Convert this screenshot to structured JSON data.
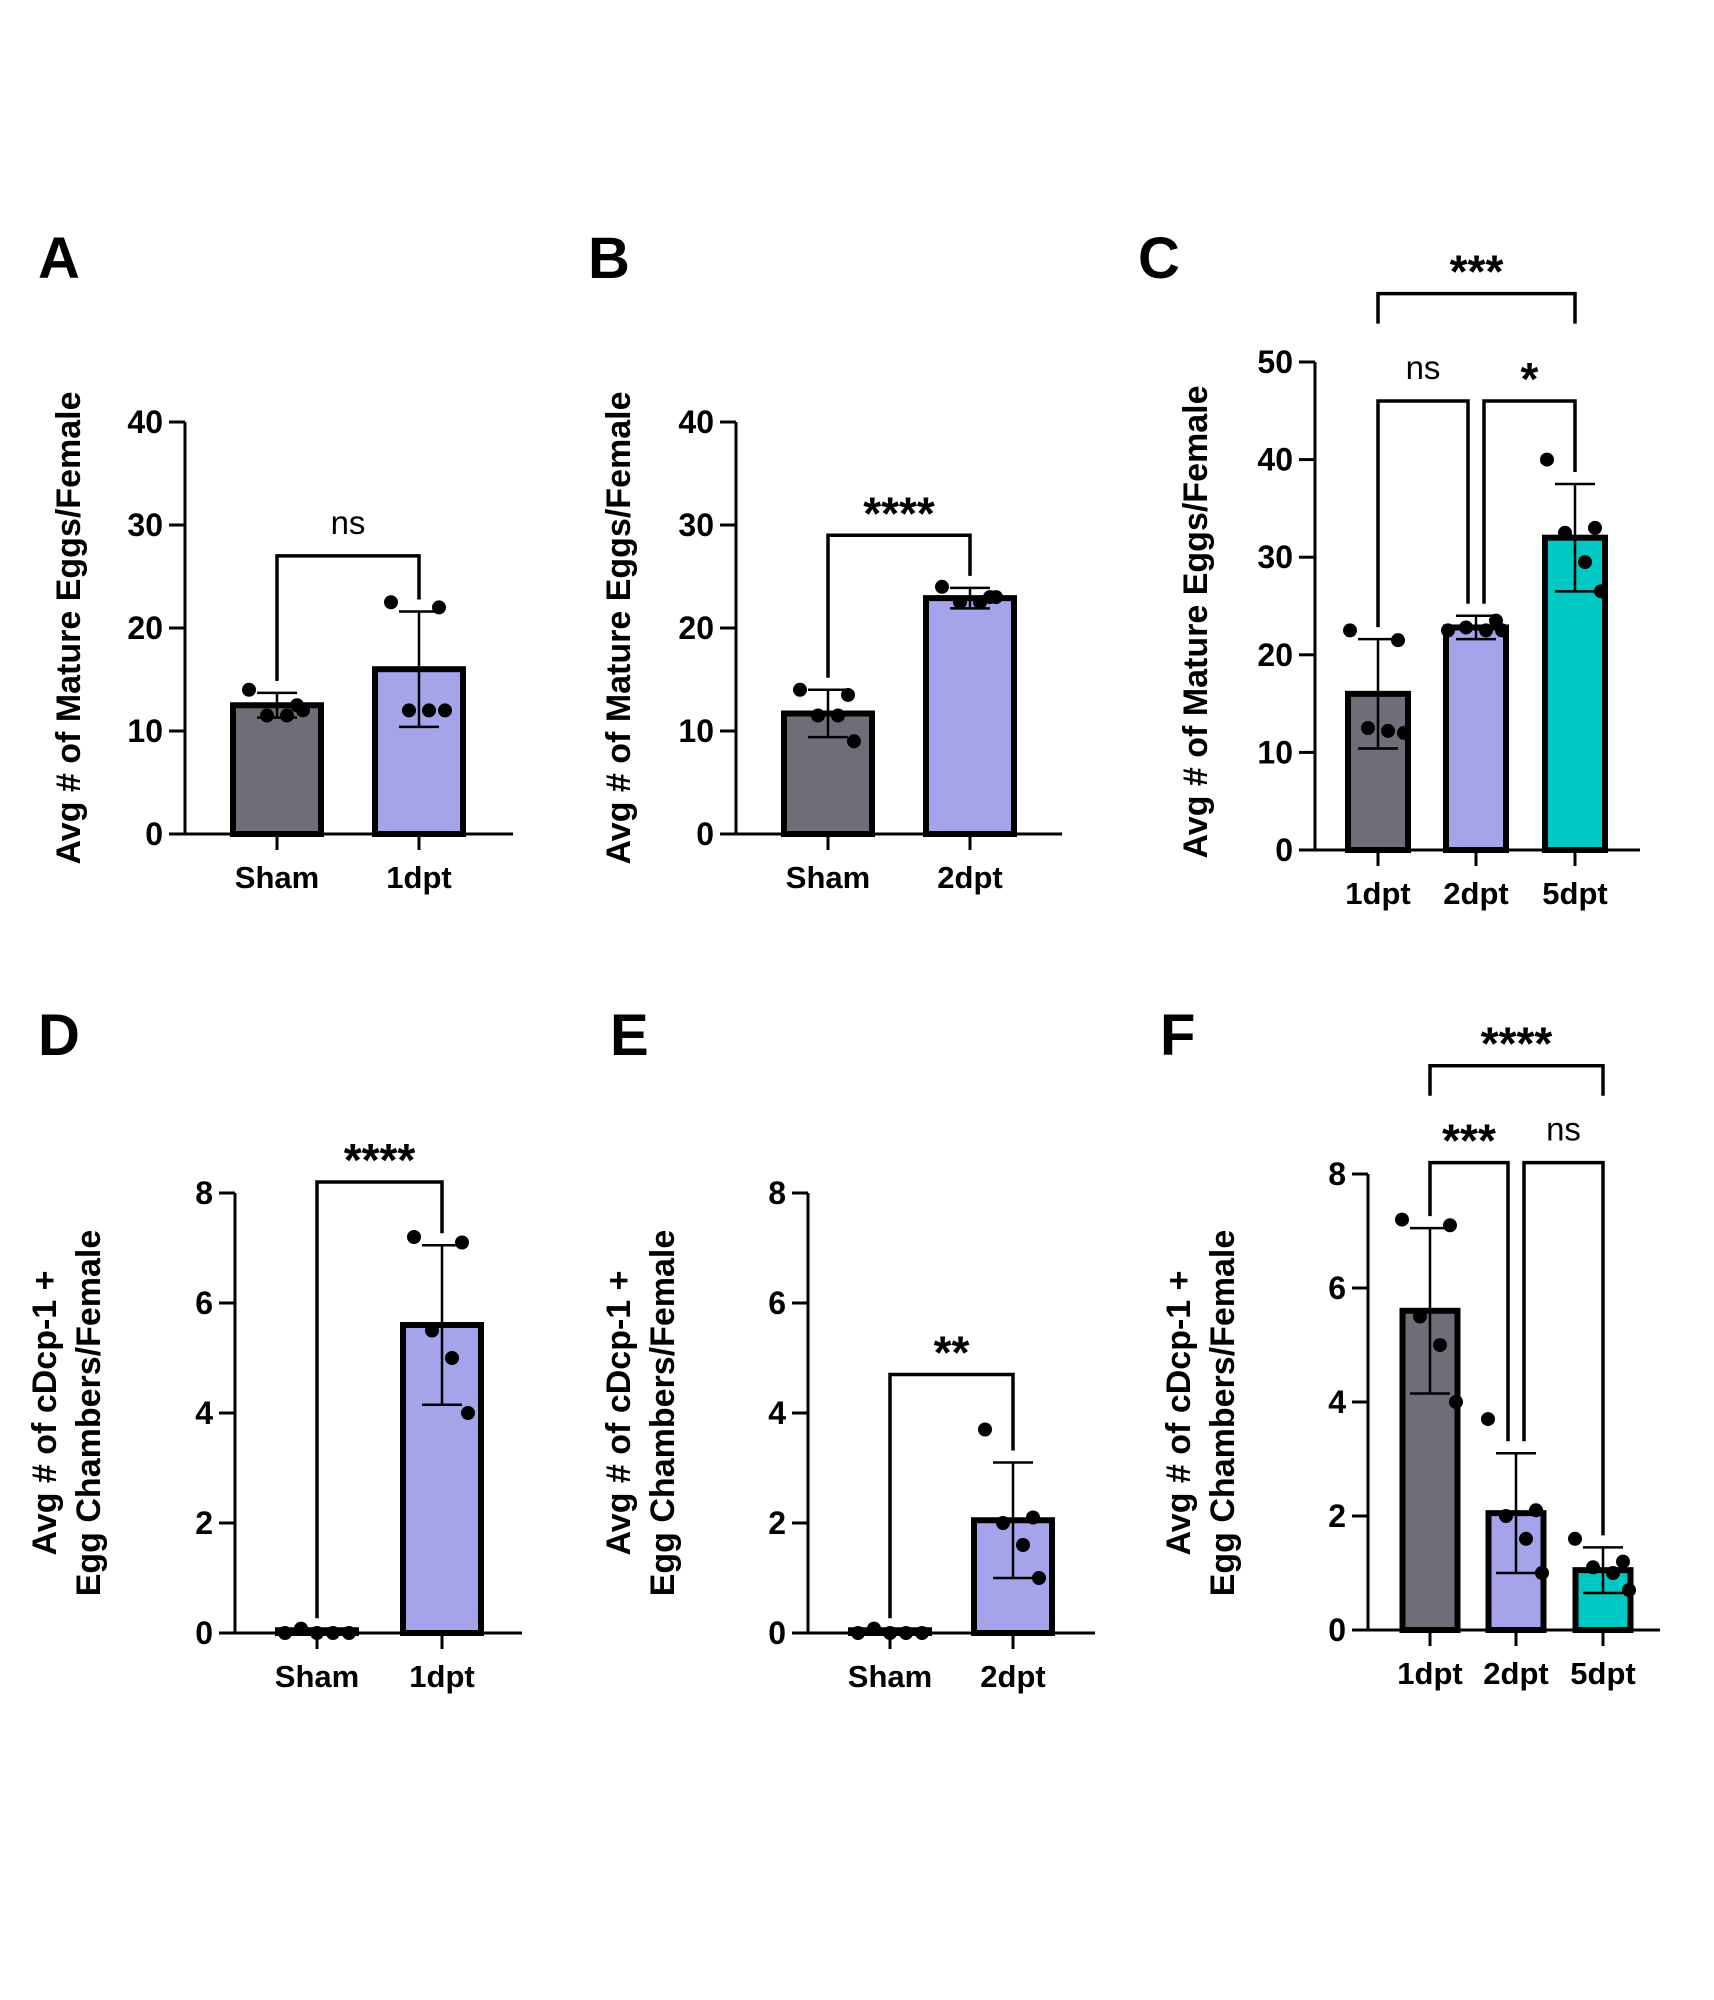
{
  "chart_data": [
    {
      "panel": "A",
      "type": "bar",
      "ylabel_lines": [
        "Avg # of Mature Eggs/Female"
      ],
      "ylim": [
        0,
        40
      ],
      "yticks": [
        0,
        10,
        20,
        30,
        40
      ],
      "categories": [
        "Sham",
        "1dpt"
      ],
      "values": [
        12.5,
        16
      ],
      "error": [
        1.2,
        5.6
      ],
      "points": [
        [
          14,
          12.5,
          11.5,
          11.5,
          12
        ],
        [
          22.5,
          22,
          12,
          12,
          12
        ]
      ],
      "colors": [
        "#6e6e78",
        "#a5a3ea"
      ],
      "significance": [
        {
          "from": 0,
          "to": 1,
          "label": "ns",
          "y": 27
        }
      ]
    },
    {
      "panel": "B",
      "type": "bar",
      "ylabel_lines": [
        "Avg # of Mature Eggs/Female"
      ],
      "ylim": [
        0,
        40
      ],
      "yticks": [
        0,
        10,
        20,
        30,
        40
      ],
      "categories": [
        "Sham",
        "2dpt"
      ],
      "values": [
        11.7,
        22.9
      ],
      "error": [
        2.3,
        1.0
      ],
      "points": [
        [
          14,
          13.5,
          11.5,
          11.5,
          9
        ],
        [
          24,
          23,
          22.5,
          22.5,
          23
        ]
      ],
      "colors": [
        "#6e6e78",
        "#a5a3ea"
      ],
      "significance": [
        {
          "from": 0,
          "to": 1,
          "label": "****",
          "y": 29
        }
      ]
    },
    {
      "panel": "C",
      "type": "bar",
      "ylabel_lines": [
        "Avg # of Mature Eggs/Female"
      ],
      "ylim": [
        0,
        50
      ],
      "yticks": [
        0,
        10,
        20,
        30,
        40,
        50
      ],
      "categories": [
        "1dpt",
        "2dpt",
        "5dpt"
      ],
      "values": [
        16,
        22.8,
        32
      ],
      "error": [
        5.6,
        1.2,
        5.5
      ],
      "points": [
        [
          22.5,
          21.5,
          12.5,
          12.2,
          12
        ],
        [
          22.5,
          23.5,
          22.8,
          22.5,
          22.5
        ],
        [
          40,
          33,
          32.5,
          29.5,
          26.5
        ]
      ],
      "colors": [
        "#6e6e78",
        "#a5a3ea",
        "#00c8c2"
      ],
      "significance": [
        {
          "from": 0,
          "to": 1,
          "label": "ns",
          "y": 46
        },
        {
          "from": 1,
          "to": 2,
          "label": "*",
          "y": 46
        },
        {
          "from": 0,
          "to": 2,
          "label": "***",
          "y": 57
        }
      ]
    },
    {
      "panel": "D",
      "type": "bar",
      "ylabel_lines": [
        "Avg # of cDcp-1 +",
        "Egg Chambers/Female"
      ],
      "ylim": [
        0,
        8
      ],
      "yticks": [
        0,
        2,
        4,
        6,
        8
      ],
      "categories": [
        "Sham",
        "1dpt"
      ],
      "values": [
        0.05,
        5.6
      ],
      "error": [
        0,
        1.45
      ],
      "points": [
        [
          0,
          0.08,
          0,
          0,
          0
        ],
        [
          7.2,
          7.1,
          5.5,
          5.0,
          4.0
        ]
      ],
      "colors": [
        "#6e6e78",
        "#a5a3ea"
      ],
      "significance": [
        {
          "from": 0,
          "to": 1,
          "label": "****",
          "y": 8.2
        }
      ]
    },
    {
      "panel": "E",
      "type": "bar",
      "ylabel_lines": [
        "Avg # of cDcp-1 +",
        "Egg Chambers/Female"
      ],
      "ylim": [
        0,
        8
      ],
      "yticks": [
        0,
        2,
        4,
        6,
        8
      ],
      "categories": [
        "Sham",
        "2dpt"
      ],
      "values": [
        0.05,
        2.05
      ],
      "error": [
        0,
        1.05
      ],
      "points": [
        [
          0,
          0.08,
          0,
          0,
          0
        ],
        [
          3.7,
          2.1,
          2.0,
          1.6,
          1.0
        ]
      ],
      "colors": [
        "#6e6e78",
        "#a5a3ea"
      ],
      "significance": [
        {
          "from": 0,
          "to": 1,
          "label": "**",
          "y": 4.7
        }
      ]
    },
    {
      "panel": "F",
      "type": "bar",
      "ylabel_lines": [
        "Avg # of cDcp-1 +",
        "Egg Chambers/Female"
      ],
      "ylim": [
        0,
        8
      ],
      "yticks": [
        0,
        2,
        4,
        6,
        8
      ],
      "categories": [
        "1dpt",
        "2dpt",
        "5dpt"
      ],
      "values": [
        5.6,
        2.05,
        1.05
      ],
      "error": [
        1.45,
        1.05,
        0.4
      ],
      "points": [
        [
          7.2,
          7.1,
          5.5,
          5.0,
          4.0
        ],
        [
          3.7,
          2.1,
          2.0,
          1.6,
          1.0
        ],
        [
          1.6,
          1.2,
          1.1,
          1.0,
          0.7
        ]
      ],
      "colors": [
        "#6e6e78",
        "#a5a3ea",
        "#00c8c2"
      ],
      "significance": [
        {
          "from": 0,
          "to": 1,
          "label": "***",
          "y": 8.2
        },
        {
          "from": 1,
          "to": 2,
          "label": "ns",
          "y": 8.2
        },
        {
          "from": 0,
          "to": 2,
          "label": "****",
          "y": 9.9
        }
      ]
    }
  ]
}
